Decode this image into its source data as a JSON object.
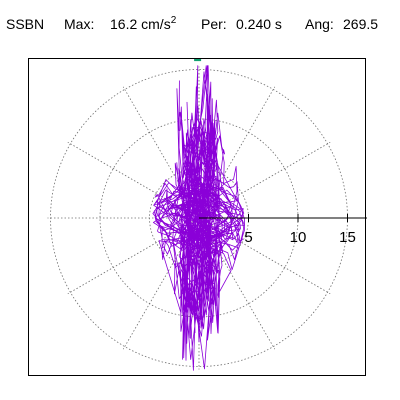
{
  "header": {
    "station": "SSBN",
    "max_label": "Max:",
    "max_value": "16.2 cm/s",
    "max_unit_sup": "2",
    "per_label": "Per:",
    "per_value": "0.240 s",
    "ang_label": "Ang:",
    "ang_value": "269.5"
  },
  "colors": {
    "trace": "#8a00d8",
    "grid": "#6e6e6e",
    "axis": "#000000",
    "marker": "#11a070"
  },
  "chart_data": {
    "type": "polar-particle-motion",
    "title": "SSBN",
    "rings": [
      5,
      10,
      15
    ],
    "radial_tick_labels": [
      "5",
      "10",
      "15"
    ],
    "radial_range": [
      0,
      17
    ],
    "spokes_deg": [
      0,
      30,
      60,
      90,
      120,
      150,
      180,
      210,
      240,
      270,
      300,
      330
    ],
    "grid": true,
    "max_amplitude": 16.2,
    "period_s": 0.24,
    "angle_deg": 269.5,
    "marker": {
      "angle_deg": 269.5,
      "r": 16.2
    },
    "trace_envelope": {
      "major_axis_deg": 269.5,
      "major_half_length": 16.2,
      "minor_half_width": 2.2
    }
  }
}
